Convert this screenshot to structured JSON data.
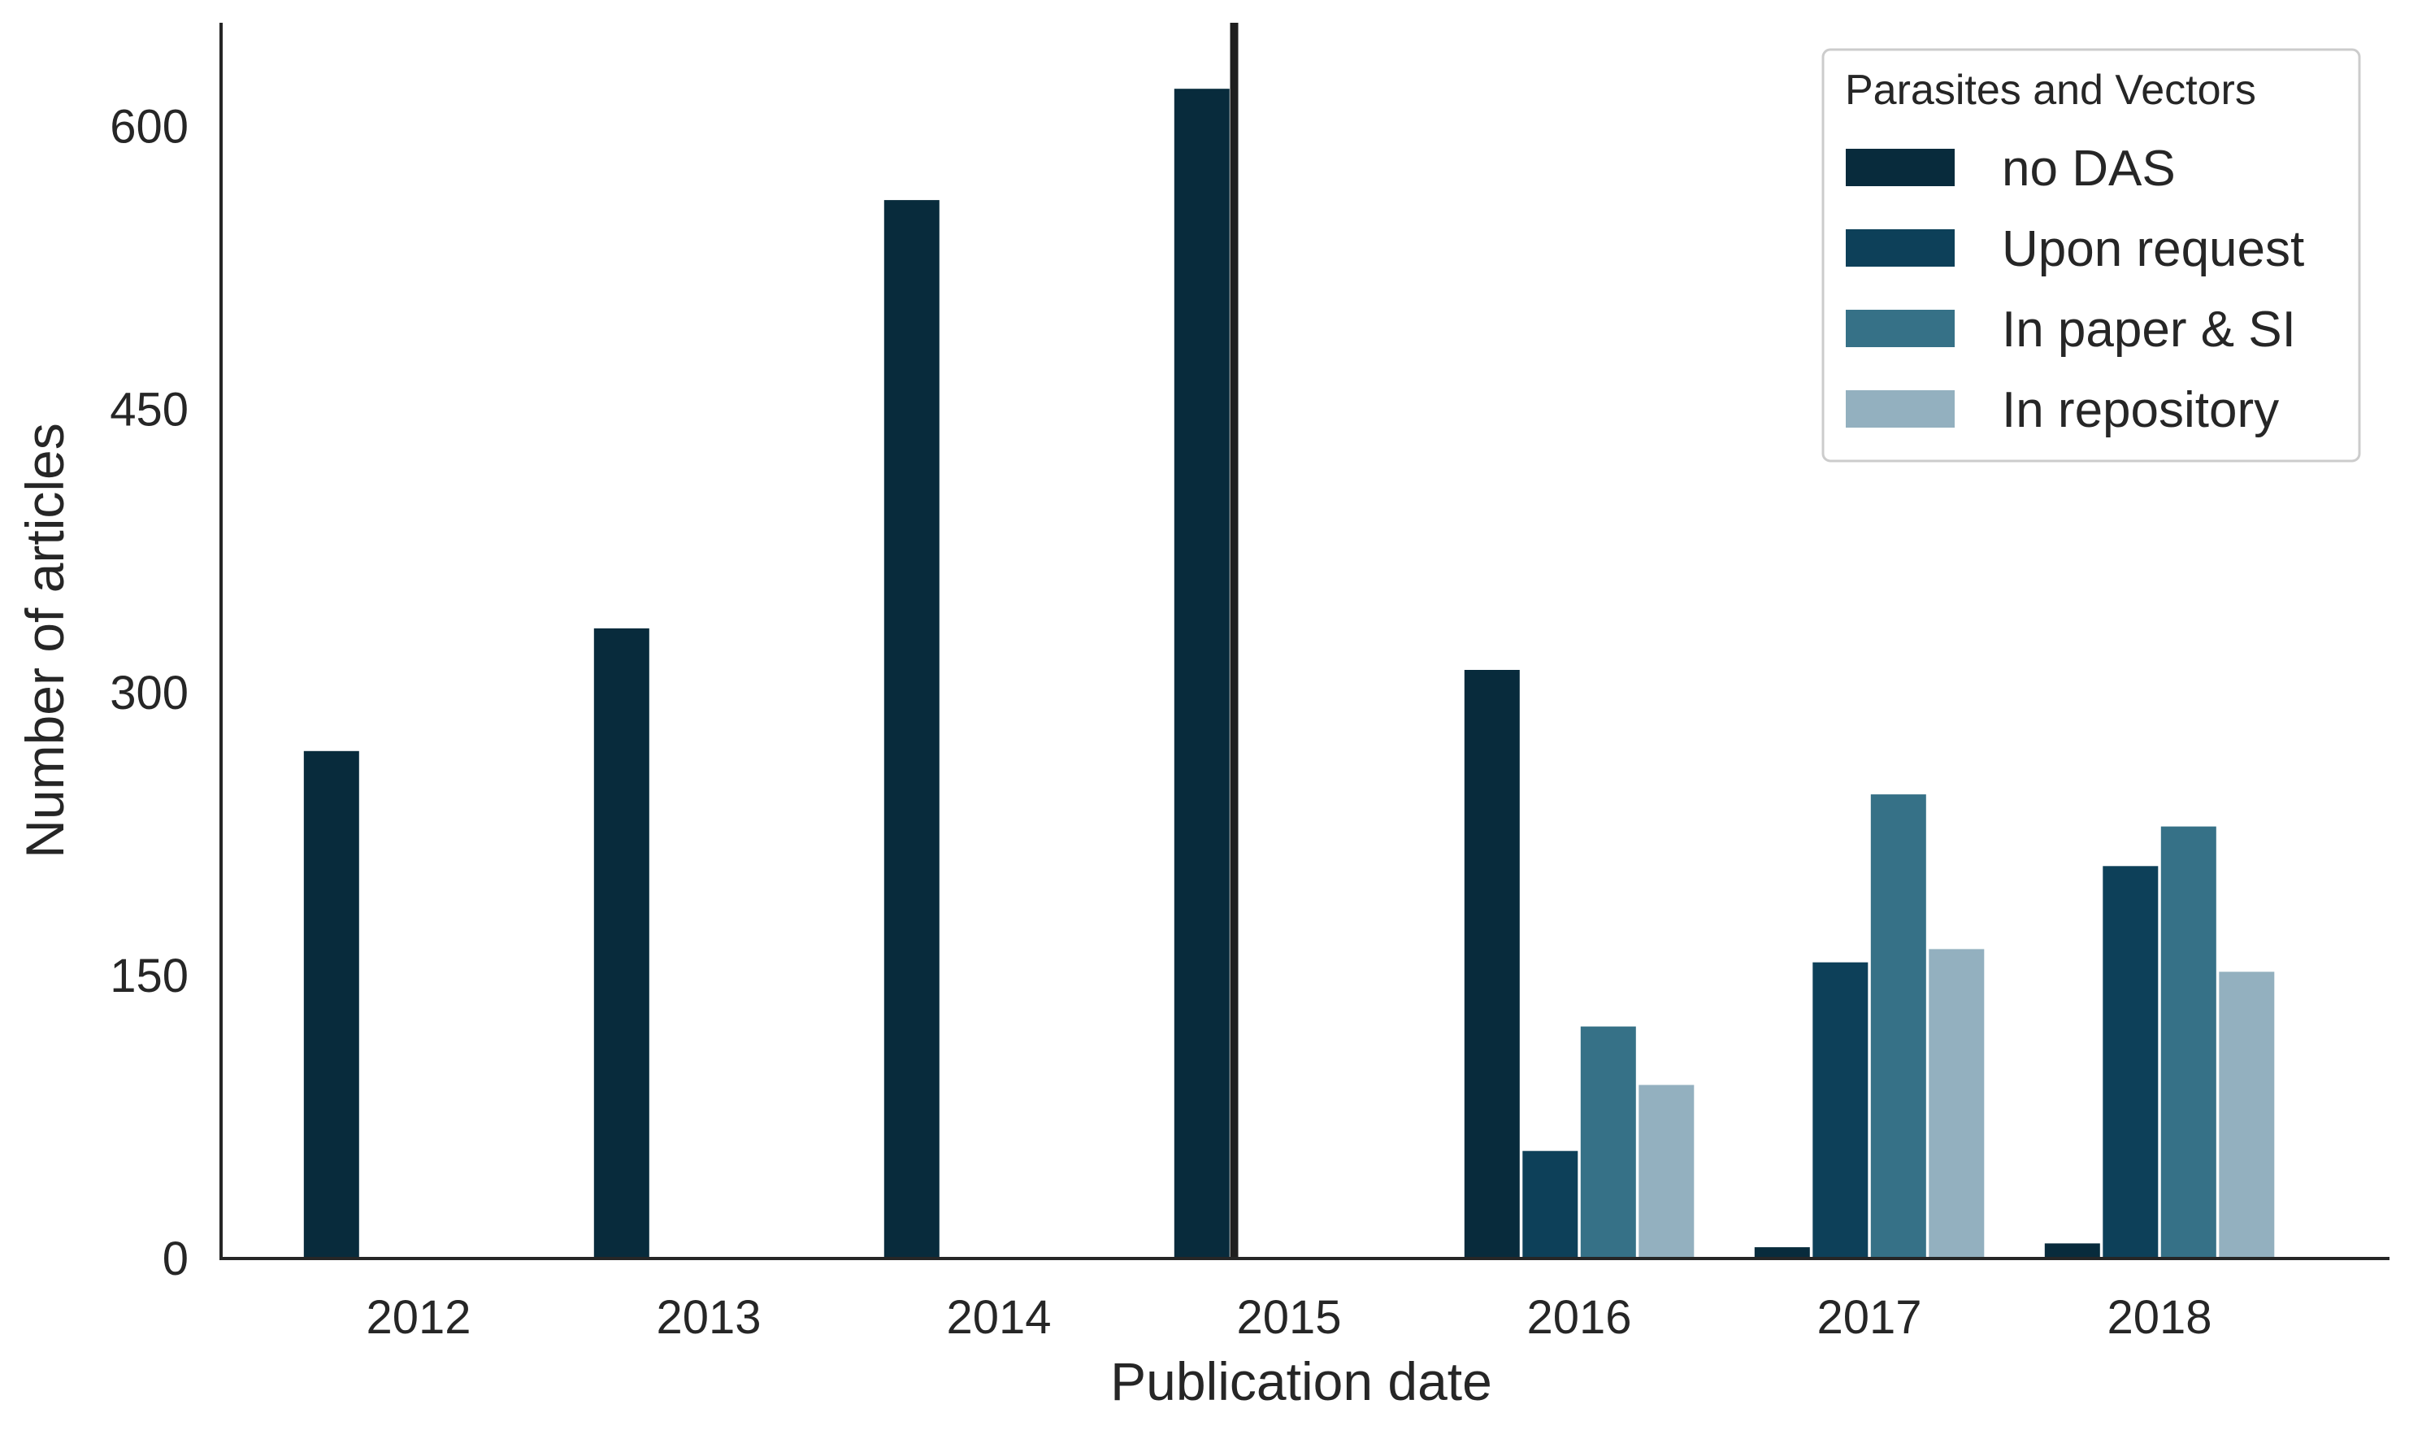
{
  "chart_data": {
    "type": "bar",
    "xlabel": "Publication date",
    "ylabel": "Number of articles",
    "categories": [
      "2012",
      "2013",
      "2014",
      "2015",
      "2016",
      "2017",
      "2018"
    ],
    "ylim": [
      0,
      655
    ],
    "yticks": [
      0,
      150,
      300,
      450,
      600
    ],
    "grid": false,
    "legend": {
      "title": "Parasites and Vectors",
      "placement": "top-right"
    },
    "series": [
      {
        "name": "no DAS",
        "color": "#082b3c",
        "values": [
          269,
          334,
          561,
          620,
          312,
          6,
          8
        ]
      },
      {
        "name": "Upon request",
        "color": "#0d4059",
        "values": [
          0,
          0,
          0,
          0,
          57,
          157,
          208
        ]
      },
      {
        "name": "In paper & SI",
        "color": "#367187",
        "values": [
          0,
          0,
          0,
          0,
          123,
          246,
          229
        ]
      },
      {
        "name": "In repository",
        "color": "#93b0bf",
        "values": [
          0,
          0,
          0,
          0,
          92,
          164,
          152
        ]
      }
    ],
    "annotations": [
      {
        "type": "vertical-line",
        "x_between": [
          "2015"
        ],
        "position": "just right of the 2015 no DAS bar",
        "color": "#1f1f1f"
      }
    ]
  }
}
